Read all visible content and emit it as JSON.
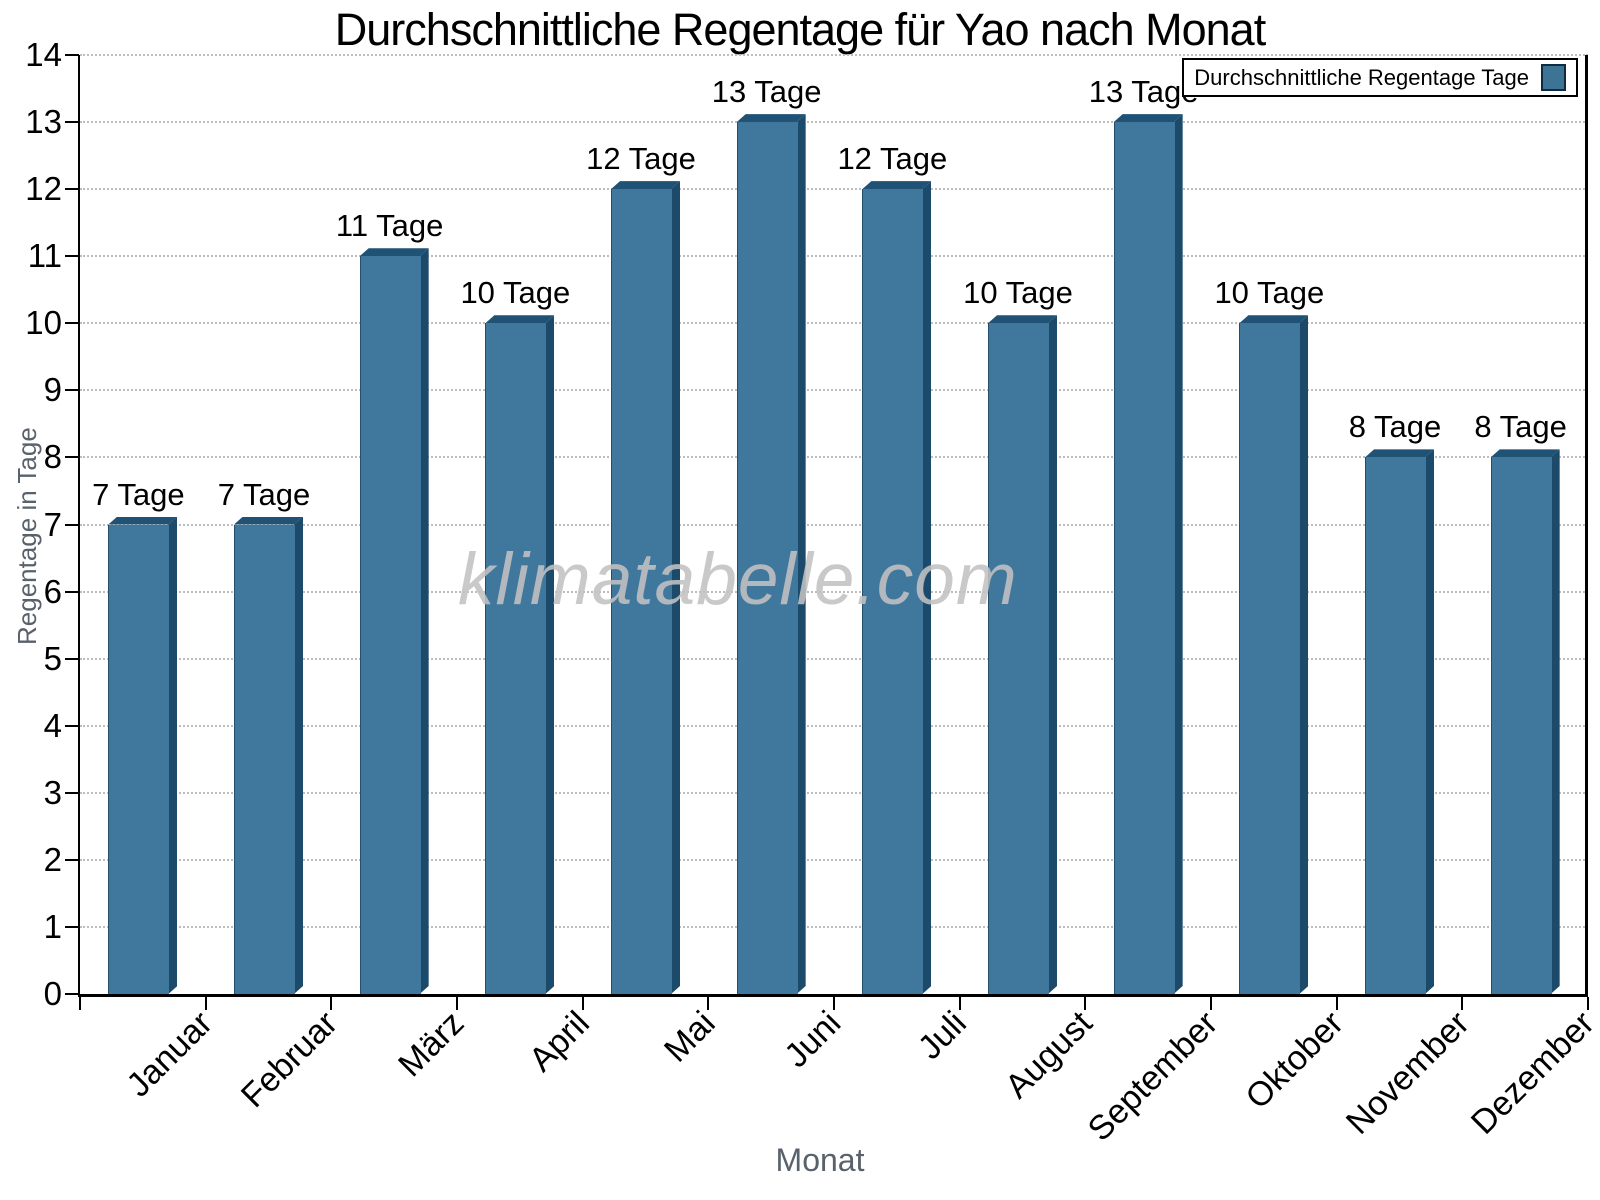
{
  "chart_data": {
    "type": "bar",
    "title": "Durchschnittliche Regentage für Yao nach Monat",
    "xlabel": "Monat",
    "ylabel": "Regentage in Tage",
    "categories": [
      "Januar",
      "Februar",
      "März",
      "April",
      "Mai",
      "Juni",
      "Juli",
      "August",
      "September",
      "Oktober",
      "November",
      "Dezember"
    ],
    "values": [
      7,
      7,
      11,
      10,
      12,
      13,
      12,
      10,
      13,
      10,
      8,
      8
    ],
    "bar_labels": [
      "7 Tage",
      "7 Tage",
      "11 Tage",
      "10 Tage",
      "12 Tage",
      "13 Tage",
      "12 Tage",
      "10 Tage",
      "13 Tage",
      "10 Tage",
      "8 Tage",
      "8 Tage"
    ],
    "yticks": [
      0,
      1,
      2,
      3,
      4,
      5,
      6,
      7,
      8,
      9,
      10,
      11,
      12,
      13,
      14
    ],
    "ylim": [
      0,
      14
    ],
    "grid": "horizontal-dotted",
    "legend": {
      "label": "Durchschnittliche Regentage Tage",
      "position": "top-right"
    },
    "watermark": "klimatabelle.com",
    "colors": {
      "bar_front": "#40779C",
      "bar_side": "#1B4A6B",
      "bar_top": "#1F5274",
      "legend_swatch": "#3D7394",
      "grid": "#BDBDBD",
      "axis": "#000000",
      "axis_title": "#59626C",
      "text": "#000000"
    }
  }
}
